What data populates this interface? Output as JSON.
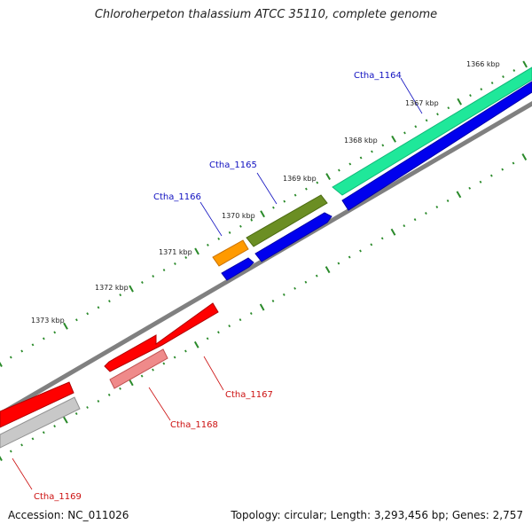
{
  "title": "Chloroherpeton thalassium ATCC 35110, complete genome",
  "footer": {
    "accession": "Accession: NC_011026",
    "summary": "Topology: circular; Length: 3,293,456 bp; Genes: 2,757"
  },
  "colors": {
    "forward_label": "#1010c0",
    "reverse_label": "#cc1010",
    "backbone": "#808080",
    "tick": "#2a8a2a"
  },
  "scale_labels": [
    "1366 kbp",
    "1367 kbp",
    "1368 kbp",
    "1369 kbp",
    "1370 kbp",
    "1371 kbp",
    "1372 kbp",
    "1373 kbp"
  ],
  "genes": [
    {
      "label": "Ctha_1164",
      "strand": "forward",
      "color": "#1fe89a"
    },
    {
      "label": "Ctha_1165",
      "strand": "forward",
      "color": "#6b8e23"
    },
    {
      "label": "Ctha_1166",
      "strand": "forward",
      "color": "#ff9a00"
    },
    {
      "label": "Ctha_1167",
      "strand": "reverse",
      "color": "#ff0000"
    },
    {
      "label": "Ctha_1168",
      "strand": "reverse",
      "color": "#ef8a8a"
    },
    {
      "label": "Ctha_1169",
      "strand": "reverse",
      "color": "#ff0000"
    }
  ]
}
